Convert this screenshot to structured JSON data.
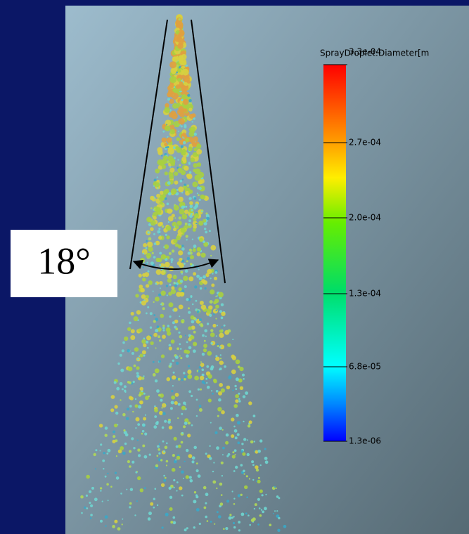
{
  "angle_label": "18°",
  "colorbar": {
    "title": "SprayDroplet:Diameter[m",
    "ticks": [
      "3.3e-04",
      "2.7e-04",
      "2.0e-04",
      "1.3e-04",
      "6.8e-05",
      "1.3e-06"
    ]
  }
}
